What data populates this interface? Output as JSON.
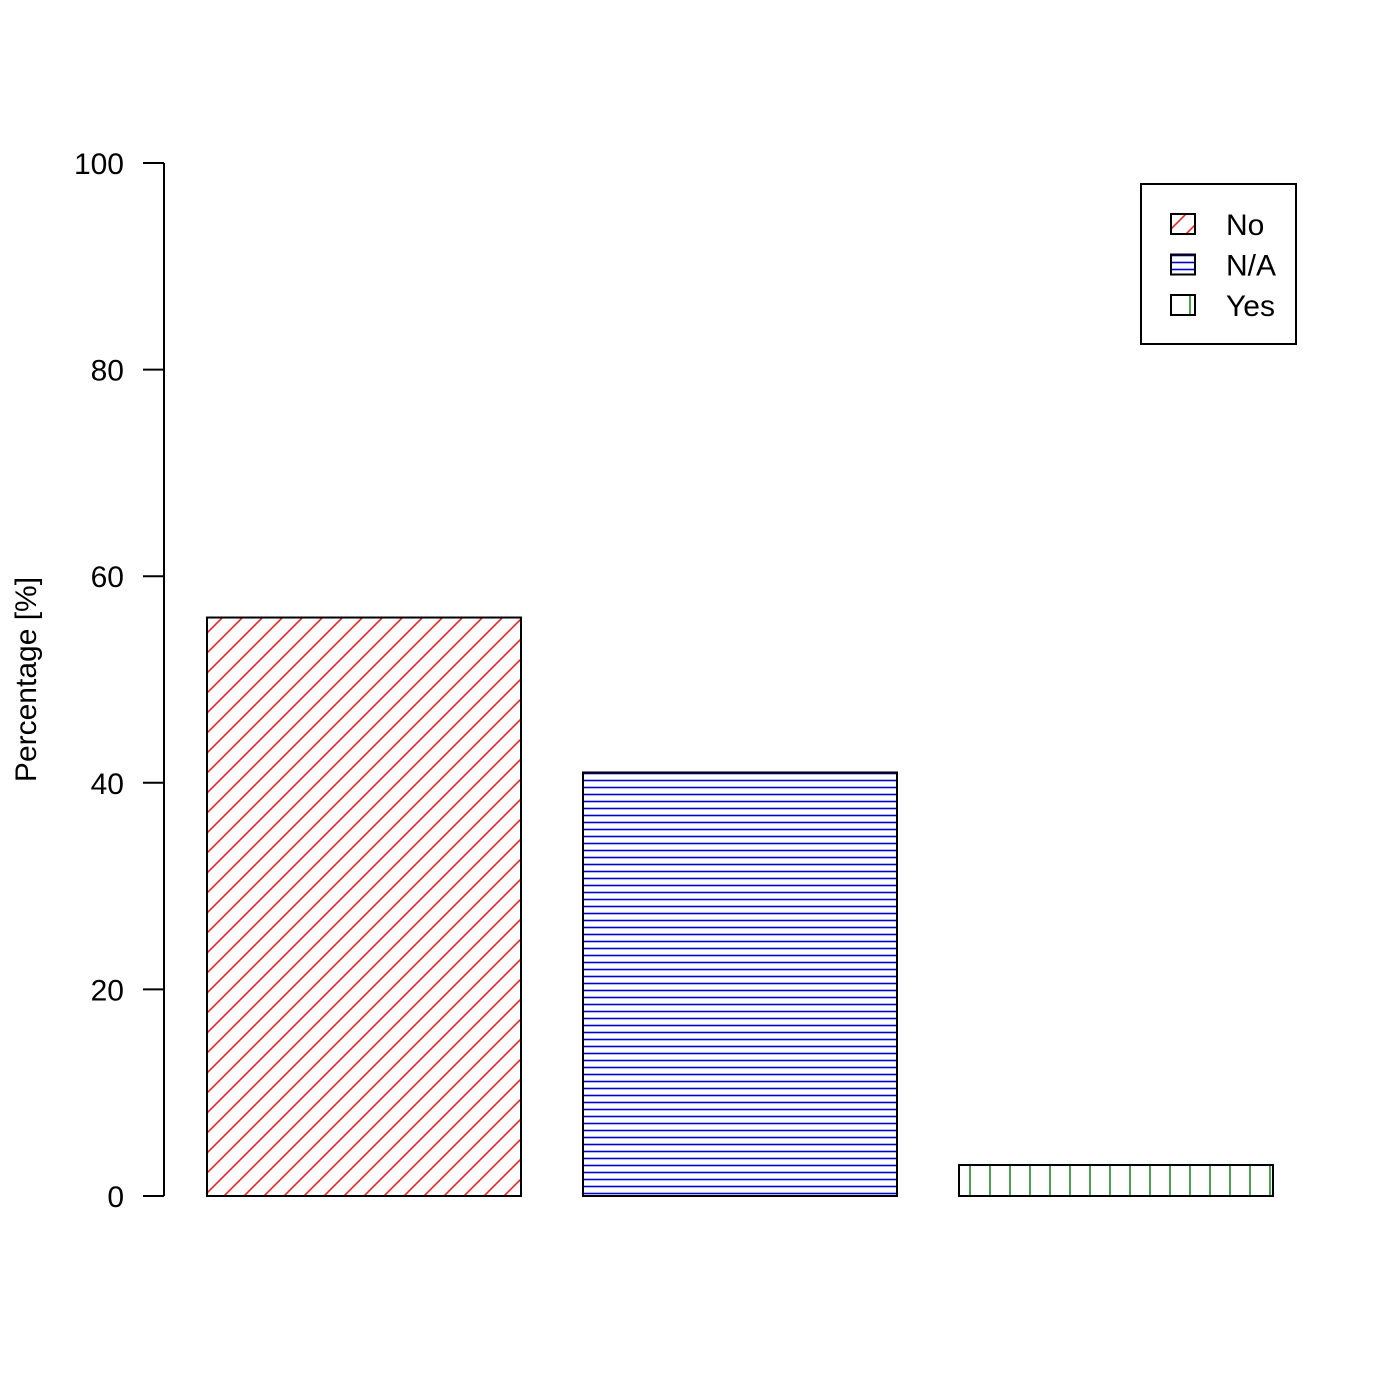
{
  "chart_data": {
    "type": "bar",
    "title": "",
    "xlabel": "",
    "ylabel": "Percentage [%]",
    "ylim": [
      0,
      100
    ],
    "yticks": [
      "0",
      "20",
      "40",
      "60",
      "80",
      "100"
    ],
    "categories": [
      "No",
      "N/A",
      "Yes"
    ],
    "values": [
      56,
      41,
      3
    ],
    "fill_patterns": [
      "diagonal-hatch",
      "horizontal-hatch",
      "vertical-hatch"
    ],
    "colors": [
      "#ee2222",
      "#0000cc",
      "#22882a"
    ],
    "grid": false,
    "legend": {
      "placement": "top-right",
      "entries": [
        "No",
        "N/A",
        "Yes"
      ]
    }
  }
}
